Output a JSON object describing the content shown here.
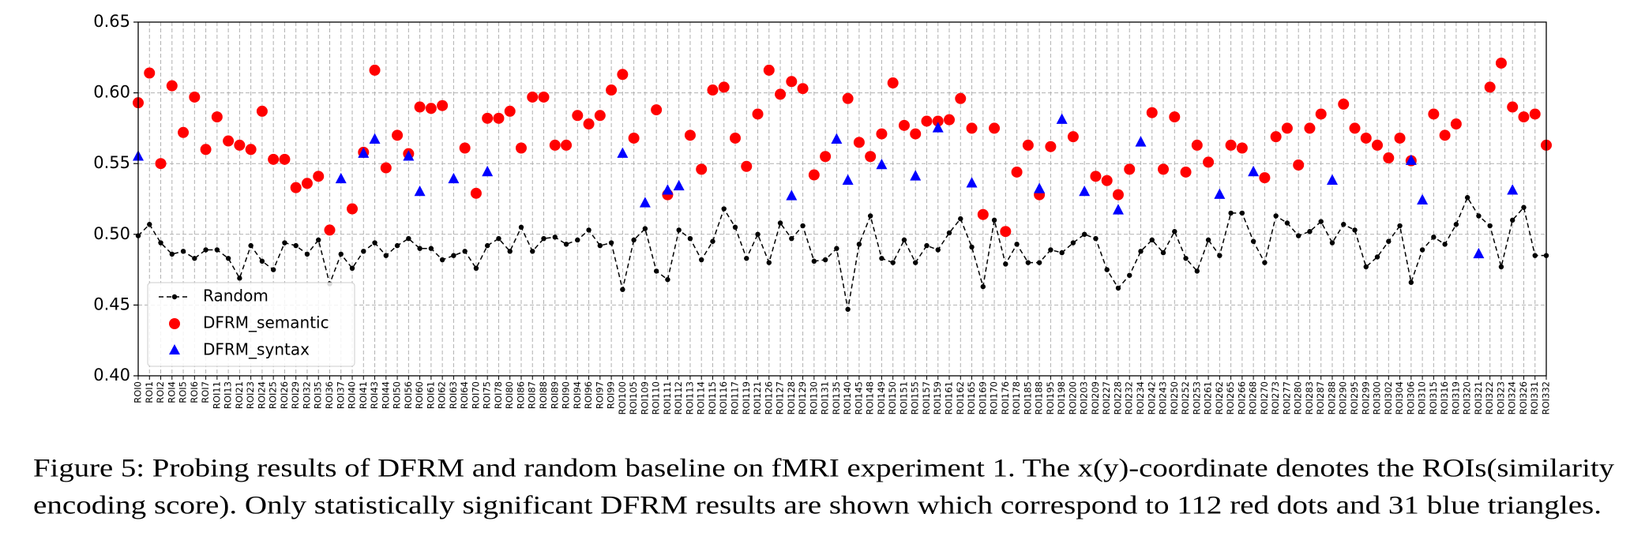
{
  "chart_data": {
    "type": "scatter",
    "caption": [
      "Figure 5: Probing results of DFRM and random baseline on fMRI experiment 1. The x(y)-coordinate denotes the ROIs(similarity",
      "encoding score). Only statistically significant DFRM results are shown which correspond to 112 red dots and 31 blue triangles."
    ],
    "categories": [
      "ROI0",
      "ROI1",
      "ROI2",
      "ROI4",
      "ROI5",
      "ROI6",
      "ROI7",
      "ROI11",
      "ROI13",
      "ROI21",
      "ROI23",
      "ROI24",
      "ROI25",
      "ROI26",
      "ROI29",
      "ROI32",
      "ROI35",
      "ROI36",
      "ROI37",
      "ROI40",
      "ROI41",
      "ROI43",
      "ROI44",
      "ROI50",
      "ROI56",
      "ROI60",
      "ROI61",
      "ROI62",
      "ROI63",
      "ROI64",
      "ROI70",
      "ROI75",
      "ROI78",
      "ROI80",
      "ROI86",
      "ROI87",
      "ROI88",
      "ROI89",
      "ROI90",
      "ROI94",
      "ROI96",
      "ROI97",
      "ROI99",
      "ROI100",
      "ROI105",
      "ROI109",
      "ROI110",
      "ROI111",
      "ROI112",
      "ROI113",
      "ROI114",
      "ROI115",
      "ROI116",
      "ROI117",
      "ROI119",
      "ROI121",
      "ROI126",
      "ROI127",
      "ROI128",
      "ROI129",
      "ROI130",
      "ROI131",
      "ROI135",
      "ROI140",
      "ROI145",
      "ROI148",
      "ROI149",
      "ROI150",
      "ROI151",
      "ROI155",
      "ROI157",
      "ROI159",
      "ROI161",
      "ROI162",
      "ROI165",
      "ROI169",
      "ROI170",
      "ROI176",
      "ROI178",
      "ROI185",
      "ROI188",
      "ROI195",
      "ROI198",
      "ROI200",
      "ROI203",
      "ROI209",
      "ROI227",
      "ROI228",
      "ROI232",
      "ROI234",
      "ROI242",
      "ROI243",
      "ROI250",
      "ROI252",
      "ROI253",
      "ROI261",
      "ROI262",
      "ROI265",
      "ROI266",
      "ROI268",
      "ROI270",
      "ROI273",
      "ROI277",
      "ROI280",
      "ROI283",
      "ROI287",
      "ROI288",
      "ROI290",
      "ROI295",
      "ROI299",
      "ROI300",
      "ROI302",
      "ROI304",
      "ROI306",
      "ROI310",
      "ROI315",
      "ROI316",
      "ROI319",
      "ROI320",
      "ROI321",
      "ROI322",
      "ROI323",
      "ROI324",
      "ROI326",
      "ROI331",
      "ROI332"
    ],
    "series": [
      {
        "name": "Random",
        "color": "#000000",
        "marker": "dot",
        "linestyle": "dashed",
        "values": [
          0.499,
          0.507,
          0.494,
          0.486,
          0.488,
          0.483,
          0.489,
          0.489,
          0.483,
          0.469,
          0.492,
          0.481,
          0.475,
          0.494,
          0.492,
          0.486,
          0.496,
          0.465,
          0.486,
          0.476,
          0.488,
          0.494,
          0.485,
          0.492,
          0.497,
          0.49,
          0.49,
          0.482,
          0.485,
          0.488,
          0.476,
          0.492,
          0.497,
          0.488,
          0.505,
          0.488,
          0.497,
          0.498,
          0.493,
          0.496,
          0.503,
          0.492,
          0.494,
          0.461,
          0.496,
          0.504,
          0.474,
          0.468,
          0.503,
          0.497,
          0.482,
          0.495,
          0.518,
          0.505,
          0.483,
          0.5,
          0.48,
          0.508,
          0.497,
          0.506,
          0.481,
          0.482,
          0.49,
          0.447,
          0.493,
          0.513,
          0.483,
          0.48,
          0.496,
          0.48,
          0.492,
          0.489,
          0.501,
          0.511,
          0.491,
          0.463,
          0.51,
          0.479,
          0.493,
          0.48,
          0.48,
          0.489,
          0.487,
          0.494,
          0.5,
          0.497,
          0.475,
          0.462,
          0.471,
          0.488,
          0.496,
          0.487,
          0.502,
          0.483,
          0.474,
          0.496,
          0.485,
          0.515,
          0.515,
          0.495,
          0.48,
          0.513,
          0.508,
          0.499,
          0.502,
          0.509,
          0.494,
          0.507,
          0.503,
          0.477,
          0.484,
          0.495,
          0.506,
          0.466,
          0.489,
          0.498,
          0.493,
          0.507,
          0.526,
          0.513,
          0.506,
          0.477,
          0.51,
          0.519,
          0.485,
          0.485
        ]
      },
      {
        "name": "DFRM_semantic",
        "color": "#ff0000",
        "marker": "circle",
        "linestyle": "none",
        "values": [
          0.593,
          0.614,
          0.55,
          0.605,
          0.572,
          0.597,
          0.56,
          0.583,
          0.566,
          0.563,
          0.56,
          0.587,
          0.553,
          0.553,
          0.533,
          0.536,
          0.541,
          0.503,
          null,
          0.518,
          0.558,
          0.616,
          0.547,
          0.57,
          0.557,
          0.59,
          0.589,
          0.591,
          null,
          0.561,
          0.529,
          0.582,
          0.582,
          0.587,
          0.561,
          0.597,
          0.597,
          0.563,
          0.563,
          0.584,
          0.578,
          0.584,
          0.602,
          0.613,
          0.568,
          null,
          0.588,
          0.528,
          null,
          0.57,
          0.546,
          0.602,
          0.604,
          0.568,
          0.548,
          0.585,
          0.616,
          0.599,
          0.608,
          0.603,
          0.542,
          0.555,
          null,
          0.596,
          0.565,
          0.555,
          0.571,
          0.607,
          0.577,
          0.571,
          0.58,
          0.58,
          0.581,
          0.596,
          0.575,
          0.514,
          0.575,
          0.502,
          0.544,
          0.563,
          0.528,
          0.562,
          null,
          0.569,
          null,
          0.541,
          0.538,
          0.528,
          0.546,
          null,
          0.586,
          0.546,
          0.583,
          0.544,
          0.563,
          0.551,
          null,
          0.563,
          0.561,
          null,
          0.54,
          0.569,
          0.575,
          0.549,
          0.575,
          0.585,
          null,
          0.592,
          0.575,
          0.568,
          0.563,
          0.554,
          0.568,
          0.552,
          null,
          0.585,
          0.57,
          0.578,
          null,
          null,
          0.604,
          0.621,
          0.59,
          0.583,
          0.585,
          0.563
        ]
      },
      {
        "name": "DFRM_syntax",
        "color": "#0000ff",
        "marker": "triangle",
        "linestyle": "none",
        "values": [
          0.555,
          null,
          null,
          null,
          null,
          null,
          null,
          null,
          null,
          null,
          null,
          null,
          null,
          null,
          null,
          null,
          null,
          null,
          0.539,
          null,
          0.557,
          0.567,
          null,
          null,
          0.555,
          0.53,
          null,
          null,
          0.539,
          null,
          null,
          0.544,
          null,
          null,
          null,
          null,
          null,
          null,
          null,
          null,
          null,
          null,
          null,
          0.557,
          null,
          0.522,
          null,
          0.531,
          0.534,
          null,
          null,
          null,
          null,
          null,
          null,
          null,
          null,
          null,
          0.527,
          null,
          null,
          null,
          0.567,
          0.538,
          null,
          null,
          0.549,
          null,
          null,
          0.541,
          null,
          0.575,
          null,
          null,
          0.536,
          null,
          null,
          null,
          null,
          null,
          0.532,
          null,
          0.581,
          null,
          0.53,
          null,
          null,
          0.517,
          null,
          0.565,
          null,
          null,
          null,
          null,
          null,
          null,
          0.528,
          null,
          null,
          0.544,
          null,
          null,
          null,
          null,
          null,
          null,
          0.538,
          null,
          null,
          null,
          null,
          null,
          null,
          0.552,
          0.524,
          null,
          null,
          null,
          null,
          0.486,
          null,
          null,
          0.531,
          null,
          null,
          null
        ]
      }
    ],
    "ylim": [
      0.4,
      0.65
    ],
    "yticks": [
      {
        "value": 0.4,
        "label": "0.40"
      },
      0.45,
      {
        "value": 0.5,
        "label": "0.50"
      },
      0.55,
      {
        "value": 0.6,
        "label": "0.60"
      },
      0.65
    ],
    "grid": true,
    "legend": "lower left"
  }
}
